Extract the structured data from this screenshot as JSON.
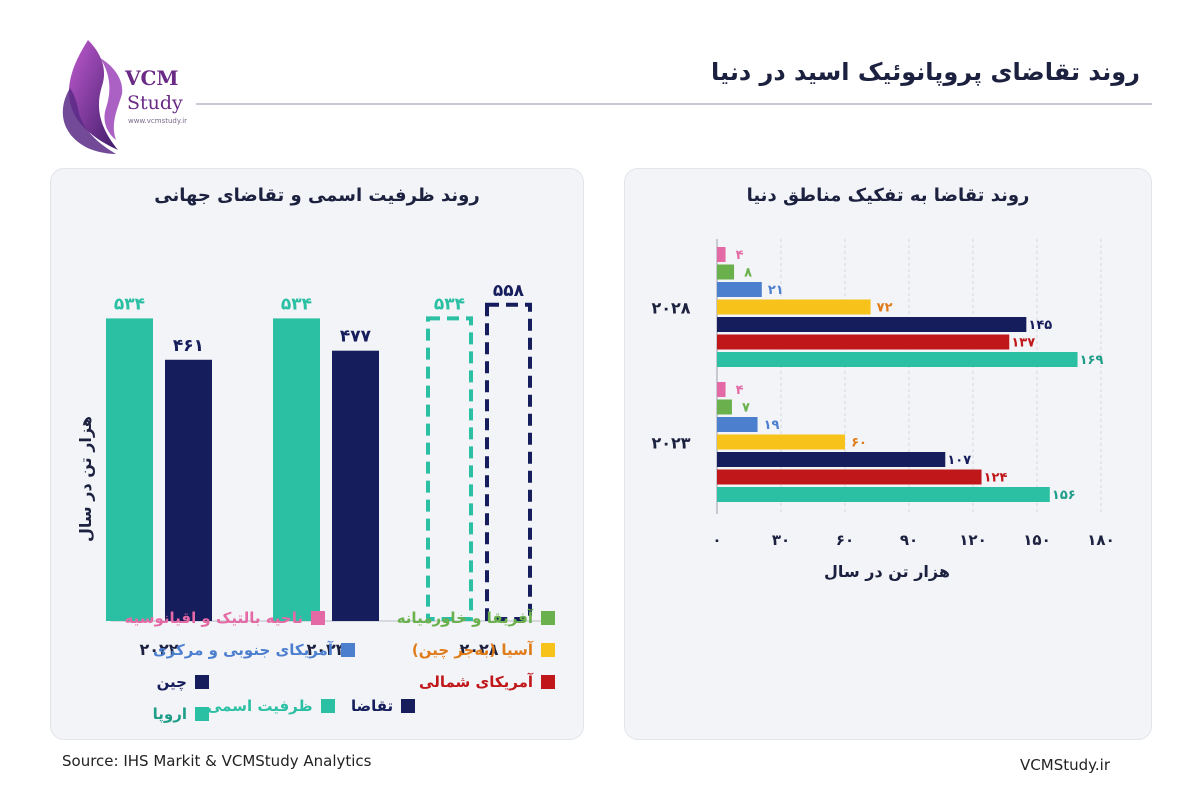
{
  "header": {
    "title": "روند تقاضای پروپانوئیک اسید در دنیا",
    "brand_name": "VCM",
    "brand_sub": "Study",
    "brand_url": "www.vcmstudy.ir"
  },
  "footer": {
    "source": "Source: IHS Markit & VCMStudy Analytics",
    "site": "VCMStudy.ir"
  },
  "colors": {
    "teal": "#2bbfa4",
    "navy": "#151d5c",
    "pink": "#e46aa5",
    "green": "#6ab04c",
    "blue": "#4d7fcf",
    "yellow": "#f7c31b",
    "red": "#c0171b"
  },
  "chart_data": [
    {
      "type": "bar",
      "title": "روند ظرفیت اسمی و تقاضای جهانی",
      "ylabel": "هزار تن در سال",
      "categories": [
        "۲۰۲۲",
        "۲۰۲۳",
        "۲۰۲۸"
      ],
      "series": [
        {
          "name": "ظرفیت اسمی",
          "values": [
            534,
            534,
            534
          ],
          "labels": [
            "۵۳۴",
            "۵۳۴",
            "۵۳۴"
          ],
          "color": "#2bbfa4"
        },
        {
          "name": "تقاضا",
          "values": [
            461,
            477,
            558
          ],
          "labels": [
            "۴۶۱",
            "۴۷۷",
            "۵۵۸"
          ],
          "color": "#151d5c"
        }
      ],
      "forecast_category": "۲۰۲۸",
      "ylim": [
        0,
        600
      ]
    },
    {
      "type": "bar",
      "orientation": "horizontal",
      "title": "روند تقاضا به تفکیک مناطق دنیا",
      "xlabel": "هزار تن در سال",
      "xticks": [
        "۰",
        "۳۰",
        "۶۰",
        "۹۰",
        "۱۲۰",
        "۱۵۰",
        "۱۸۰"
      ],
      "xlim": [
        0,
        180
      ],
      "categories": [
        "۲۰۲۸",
        "۲۰۲۳"
      ],
      "series": [
        {
          "name": "ناحیه بالتیک و اقیانوسیه",
          "values": [
            4,
            4
          ],
          "labels": [
            "۴",
            "۴"
          ],
          "color": "#e46aa5",
          "label_color": "#e46aa5"
        },
        {
          "name": "آفریقا و خاورمیانه",
          "values": [
            8,
            7
          ],
          "labels": [
            "۸",
            "۷"
          ],
          "color": "#6ab04c",
          "label_color": "#6ab04c"
        },
        {
          "name": "آمریکای جنوبی و مرکزی",
          "values": [
            21,
            19
          ],
          "labels": [
            "۲۱",
            "۱۹"
          ],
          "color": "#4d7fcf",
          "label_color": "#4d7fcf"
        },
        {
          "name": "آسیا (به‌جز چین)",
          "values": [
            72,
            60
          ],
          "labels": [
            "۷۲",
            "۶۰"
          ],
          "color": "#f7c31b",
          "label_color": "#e07b1a"
        },
        {
          "name": "چین",
          "values": [
            145,
            107
          ],
          "labels": [
            "۱۴۵",
            "۱۰۷"
          ],
          "color": "#151d5c",
          "label_color": "#151d5c"
        },
        {
          "name": "آمریکای شمالی",
          "values": [
            137,
            124
          ],
          "labels": [
            "۱۳۷",
            "۱۲۴"
          ],
          "color": "#c0171b",
          "label_color": "#c0171b"
        },
        {
          "name": "اروپا",
          "values": [
            169,
            156
          ],
          "labels": [
            "۱۶۹",
            "۱۵۶"
          ],
          "color": "#2bbfa4",
          "label_color": "#1f9d88"
        }
      ]
    }
  ]
}
